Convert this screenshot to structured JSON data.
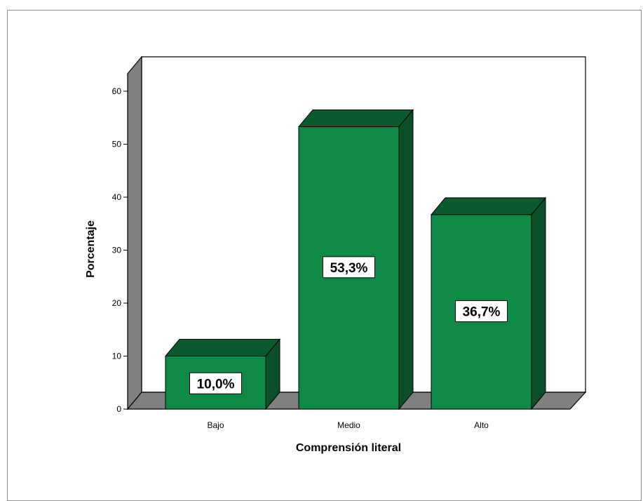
{
  "chart_data": {
    "type": "bar",
    "categories": [
      "Bajo",
      "Medio",
      "Alto"
    ],
    "values": [
      10.0,
      53.3,
      36.7
    ],
    "data_labels": [
      "10,0%",
      "53,3%",
      "36,7%"
    ],
    "xlabel": "Comprensión literal",
    "ylabel": "Porcentaje",
    "ylim": [
      0,
      60
    ],
    "yticks": [
      0,
      10,
      20,
      30,
      40,
      50,
      60
    ],
    "grid": false,
    "legend": "none",
    "style": "3d",
    "colors": {
      "bar_front": "#0e8a47",
      "bar_top": "#0b5a2d",
      "bar_side": "#0a4f27",
      "floor": "#808080",
      "wall": "#808080"
    }
  }
}
